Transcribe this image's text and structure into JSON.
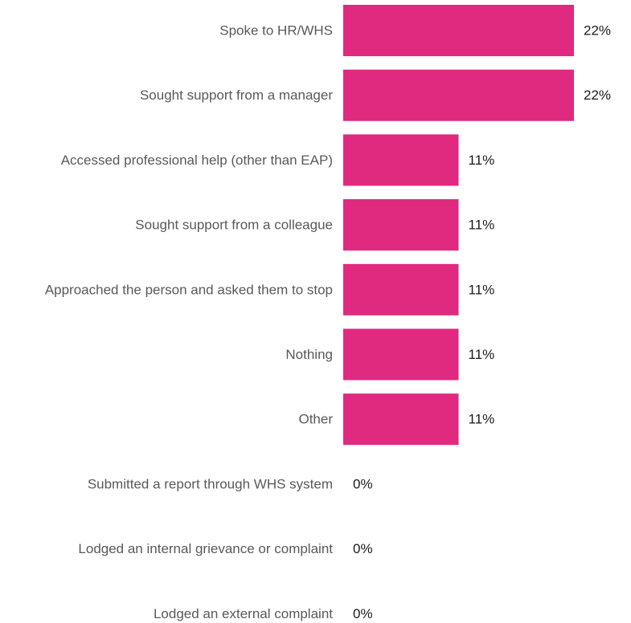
{
  "chart_data": {
    "type": "bar",
    "orientation": "horizontal",
    "categories": [
      "Spoke to HR/WHS",
      "Sought support from a manager",
      "Accessed professional help (other than EAP)",
      "Sought support from a colleague",
      "Approached the person and asked them to stop",
      "Nothing",
      "Other",
      "Submitted a report through WHS system",
      "Lodged an internal grievance or complaint",
      "Lodged an external complaint"
    ],
    "values": [
      22,
      22,
      11,
      11,
      11,
      11,
      11,
      0,
      0,
      0
    ],
    "data_labels": [
      "22%",
      "22%",
      "11%",
      "11%",
      "11%",
      "11%",
      "11%",
      "0%",
      "0%",
      "0%"
    ],
    "unit": "%",
    "xlim": [
      0,
      22
    ],
    "grid": false,
    "legend": "none",
    "bar_color": "#df2a7f"
  }
}
